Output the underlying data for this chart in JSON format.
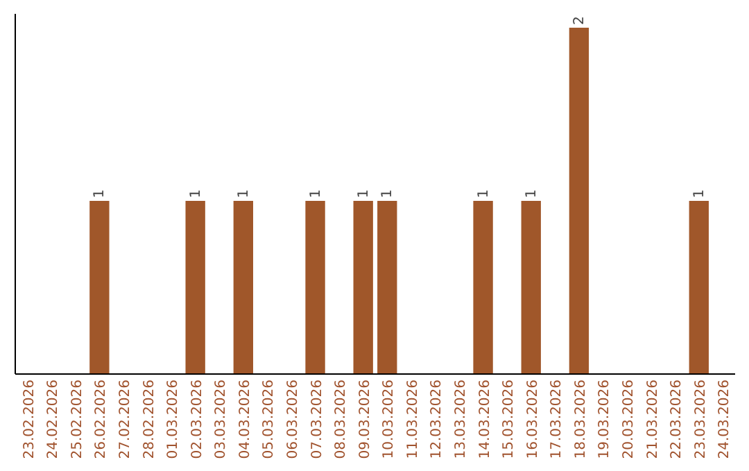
{
  "chart_data": {
    "type": "bar",
    "categories": [
      "23.02.2026",
      "24.02.2026",
      "25.02.2026",
      "26.02.2026",
      "27.02.2026",
      "28.02.2026",
      "01.03.2026",
      "02.03.2026",
      "03.03.2026",
      "04.03.2026",
      "05.03.2026",
      "06.03.2026",
      "07.03.2026",
      "08.03.2026",
      "09.03.2026",
      "10.03.2026",
      "11.03.2026",
      "12.03.2026",
      "13.03.2026",
      "14.03.2026",
      "15.03.2026",
      "16.03.2026",
      "17.03.2026",
      "18.03.2026",
      "19.03.2026",
      "20.03.2026",
      "21.03.2026",
      "22.03.2026",
      "23.03.2026",
      "24.03.2026"
    ],
    "values": [
      0,
      0,
      0,
      1,
      0,
      0,
      0,
      1,
      0,
      1,
      0,
      0,
      1,
      0,
      1,
      1,
      0,
      0,
      0,
      1,
      0,
      1,
      0,
      2,
      0,
      0,
      0,
      0,
      1,
      0
    ],
    "value_labels": [
      null,
      null,
      null,
      "1",
      null,
      null,
      null,
      "1",
      null,
      "1",
      null,
      null,
      "1",
      null,
      "1",
      "1",
      null,
      null,
      null,
      "1",
      null,
      "1",
      null,
      "2",
      null,
      null,
      null,
      null,
      "1",
      null
    ],
    "color": "#a0572a",
    "ylim": [
      0,
      2
    ],
    "tick_labels": "x"
  }
}
